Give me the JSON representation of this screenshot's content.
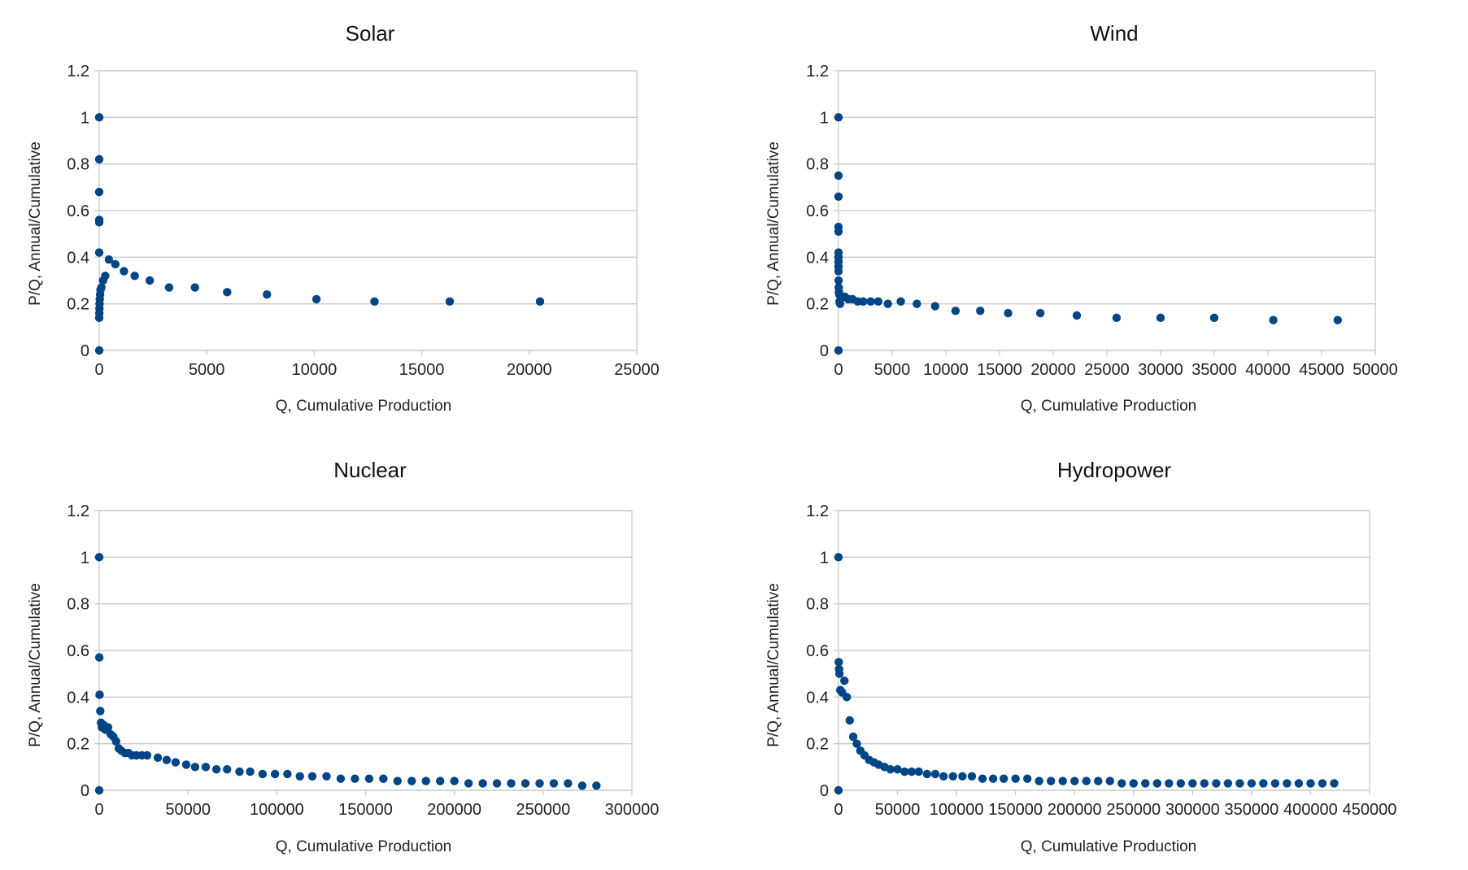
{
  "colors": {
    "marker": "#004586",
    "grid": "#c8c8c8",
    "text": "#222222"
  },
  "chart_data": [
    {
      "type": "scatter",
      "title": "Solar",
      "xlabel": "Q, Cumulative Production",
      "ylabel": "P/Q, Annual/Cumulative",
      "xlim": [
        0,
        25000
      ],
      "ylim": [
        0,
        1.2
      ],
      "xticks": [
        0,
        5000,
        10000,
        15000,
        20000,
        25000
      ],
      "yticks": [
        0,
        0.2,
        0.4,
        0.6,
        0.8,
        1,
        1.2
      ],
      "xtick_labels": [
        "0",
        "5000",
        "10000",
        "15000",
        "20000",
        "25000"
      ],
      "ytick_labels": [
        "0",
        "0.2",
        "0.4",
        "0.6",
        "0.8",
        "1",
        "1.2"
      ],
      "grid": true,
      "points": [
        {
          "x": 0,
          "y": 0
        },
        {
          "x": 0,
          "y": 1
        },
        {
          "x": 0,
          "y": 0.82
        },
        {
          "x": 0,
          "y": 0.68
        },
        {
          "x": 0,
          "y": 0.56
        },
        {
          "x": 0,
          "y": 0.55
        },
        {
          "x": 0,
          "y": 0.42
        },
        {
          "x": 0,
          "y": 0.14
        },
        {
          "x": 5,
          "y": 0.16
        },
        {
          "x": 10,
          "y": 0.18
        },
        {
          "x": 15,
          "y": 0.2
        },
        {
          "x": 25,
          "y": 0.22
        },
        {
          "x": 40,
          "y": 0.24
        },
        {
          "x": 60,
          "y": 0.26
        },
        {
          "x": 100,
          "y": 0.27
        },
        {
          "x": 180,
          "y": 0.3
        },
        {
          "x": 280,
          "y": 0.32
        },
        {
          "x": 450,
          "y": 0.39
        },
        {
          "x": 750,
          "y": 0.37
        },
        {
          "x": 1150,
          "y": 0.34
        },
        {
          "x": 1650,
          "y": 0.32
        },
        {
          "x": 2350,
          "y": 0.3
        },
        {
          "x": 3250,
          "y": 0.27
        },
        {
          "x": 4450,
          "y": 0.27
        },
        {
          "x": 5950,
          "y": 0.25
        },
        {
          "x": 7800,
          "y": 0.24
        },
        {
          "x": 10100,
          "y": 0.22
        },
        {
          "x": 12800,
          "y": 0.21
        },
        {
          "x": 16300,
          "y": 0.21
        },
        {
          "x": 20500,
          "y": 0.21
        }
      ]
    },
    {
      "type": "scatter",
      "title": "Wind",
      "xlabel": "Q, Cumulative Production",
      "ylabel": "P/Q, Annual/Cumulative",
      "xlim": [
        0,
        50000
      ],
      "ylim": [
        0,
        1.2
      ],
      "xticks": [
        0,
        5000,
        10000,
        15000,
        20000,
        25000,
        30000,
        35000,
        40000,
        45000,
        50000
      ],
      "yticks": [
        0,
        0.2,
        0.4,
        0.6,
        0.8,
        1,
        1.2
      ],
      "xtick_labels": [
        "0",
        "5000",
        "10000",
        "15000",
        "20000",
        "25000",
        "30000",
        "35000",
        "40000",
        "45000",
        "50000"
      ],
      "ytick_labels": [
        "0",
        "0.2",
        "0.4",
        "0.6",
        "0.8",
        "1",
        "1.2"
      ],
      "grid": true,
      "points": [
        {
          "x": 0,
          "y": 0
        },
        {
          "x": 0,
          "y": 1
        },
        {
          "x": 0,
          "y": 0.75
        },
        {
          "x": 0,
          "y": 0.66
        },
        {
          "x": 0,
          "y": 0.53
        },
        {
          "x": 0,
          "y": 0.51
        },
        {
          "x": 0,
          "y": 0.42
        },
        {
          "x": 0,
          "y": 0.4
        },
        {
          "x": 0,
          "y": 0.38
        },
        {
          "x": 0,
          "y": 0.36
        },
        {
          "x": 0,
          "y": 0.34
        },
        {
          "x": 10,
          "y": 0.3
        },
        {
          "x": 20,
          "y": 0.27
        },
        {
          "x": 40,
          "y": 0.25
        },
        {
          "x": 70,
          "y": 0.24
        },
        {
          "x": 100,
          "y": 0.21
        },
        {
          "x": 150,
          "y": 0.2
        },
        {
          "x": 250,
          "y": 0.23
        },
        {
          "x": 400,
          "y": 0.23
        },
        {
          "x": 600,
          "y": 0.23
        },
        {
          "x": 900,
          "y": 0.22
        },
        {
          "x": 1300,
          "y": 0.22
        },
        {
          "x": 1800,
          "y": 0.21
        },
        {
          "x": 2300,
          "y": 0.21
        },
        {
          "x": 3000,
          "y": 0.21
        },
        {
          "x": 3700,
          "y": 0.21
        },
        {
          "x": 4600,
          "y": 0.2
        },
        {
          "x": 5800,
          "y": 0.21
        },
        {
          "x": 7300,
          "y": 0.2
        },
        {
          "x": 9000,
          "y": 0.19
        },
        {
          "x": 10900,
          "y": 0.17
        },
        {
          "x": 13200,
          "y": 0.17
        },
        {
          "x": 15800,
          "y": 0.16
        },
        {
          "x": 18800,
          "y": 0.16
        },
        {
          "x": 22200,
          "y": 0.15
        },
        {
          "x": 25900,
          "y": 0.14
        },
        {
          "x": 30000,
          "y": 0.14
        },
        {
          "x": 35000,
          "y": 0.14
        },
        {
          "x": 40500,
          "y": 0.13
        },
        {
          "x": 46500,
          "y": 0.13
        }
      ]
    },
    {
      "type": "scatter",
      "title": "Nuclear",
      "xlabel": "Q, Cumulative Production",
      "ylabel": "P/Q, Annual/Cumulative",
      "xlim": [
        0,
        300000
      ],
      "ylim": [
        0,
        1.2
      ],
      "xticks": [
        0,
        50000,
        100000,
        150000,
        200000,
        250000,
        300000
      ],
      "yticks": [
        0,
        0.2,
        0.4,
        0.6,
        0.8,
        1,
        1.2
      ],
      "xtick_labels": [
        "0",
        "50000",
        "100000",
        "150000",
        "200000",
        "250000",
        "300000"
      ],
      "ytick_labels": [
        "0",
        "0.2",
        "0.4",
        "0.6",
        "0.8",
        "1",
        "1.2"
      ],
      "grid": true,
      "points": [
        {
          "x": 0,
          "y": 0
        },
        {
          "x": 0,
          "y": 1
        },
        {
          "x": 50,
          "y": 0.57
        },
        {
          "x": 200,
          "y": 0.41
        },
        {
          "x": 600,
          "y": 0.34
        },
        {
          "x": 1000,
          "y": 0.29
        },
        {
          "x": 1500,
          "y": 0.27
        },
        {
          "x": 2500,
          "y": 0.28
        },
        {
          "x": 3500,
          "y": 0.26
        },
        {
          "x": 5000,
          "y": 0.27
        },
        {
          "x": 6500,
          "y": 0.24
        },
        {
          "x": 8000,
          "y": 0.23
        },
        {
          "x": 9500,
          "y": 0.21
        },
        {
          "x": 11000,
          "y": 0.18
        },
        {
          "x": 12500,
          "y": 0.17
        },
        {
          "x": 14500,
          "y": 0.16
        },
        {
          "x": 16500,
          "y": 0.16
        },
        {
          "x": 18500,
          "y": 0.15
        },
        {
          "x": 21000,
          "y": 0.15
        },
        {
          "x": 24000,
          "y": 0.15
        },
        {
          "x": 27000,
          "y": 0.15
        },
        {
          "x": 33000,
          "y": 0.14
        },
        {
          "x": 38000,
          "y": 0.13
        },
        {
          "x": 43000,
          "y": 0.12
        },
        {
          "x": 49000,
          "y": 0.11
        },
        {
          "x": 54000,
          "y": 0.1
        },
        {
          "x": 60000,
          "y": 0.1
        },
        {
          "x": 66000,
          "y": 0.09
        },
        {
          "x": 72000,
          "y": 0.09
        },
        {
          "x": 79000,
          "y": 0.08
        },
        {
          "x": 85000,
          "y": 0.08
        },
        {
          "x": 92000,
          "y": 0.07
        },
        {
          "x": 99000,
          "y": 0.07
        },
        {
          "x": 106000,
          "y": 0.07
        },
        {
          "x": 113000,
          "y": 0.06
        },
        {
          "x": 120000,
          "y": 0.06
        },
        {
          "x": 128000,
          "y": 0.06
        },
        {
          "x": 136000,
          "y": 0.05
        },
        {
          "x": 144000,
          "y": 0.05
        },
        {
          "x": 152000,
          "y": 0.05
        },
        {
          "x": 160000,
          "y": 0.05
        },
        {
          "x": 168000,
          "y": 0.04
        },
        {
          "x": 176000,
          "y": 0.04
        },
        {
          "x": 184000,
          "y": 0.04
        },
        {
          "x": 192000,
          "y": 0.04
        },
        {
          "x": 200000,
          "y": 0.04
        },
        {
          "x": 208000,
          "y": 0.03
        },
        {
          "x": 216000,
          "y": 0.03
        },
        {
          "x": 224000,
          "y": 0.03
        },
        {
          "x": 232000,
          "y": 0.03
        },
        {
          "x": 240000,
          "y": 0.03
        },
        {
          "x": 248000,
          "y": 0.03
        },
        {
          "x": 256000,
          "y": 0.03
        },
        {
          "x": 264000,
          "y": 0.03
        },
        {
          "x": 272000,
          "y": 0.02
        },
        {
          "x": 280000,
          "y": 0.02
        }
      ]
    },
    {
      "type": "scatter",
      "title": "Hydropower",
      "xlabel": "Q, Cumulative Production",
      "ylabel": "P/Q, Annual/Cumulative",
      "xlim": [
        0,
        450000
      ],
      "ylim": [
        0,
        1.2
      ],
      "xticks": [
        0,
        50000,
        100000,
        150000,
        200000,
        250000,
        300000,
        350000,
        400000,
        450000
      ],
      "yticks": [
        0,
        0.2,
        0.4,
        0.6,
        0.8,
        1,
        1.2
      ],
      "xtick_labels": [
        "0",
        "50000",
        "100000",
        "150000",
        "200000",
        "250000",
        "300000",
        "350000",
        "400000",
        "450000"
      ],
      "ytick_labels": [
        "0",
        "0.2",
        "0.4",
        "0.6",
        "0.8",
        "1",
        "1.2"
      ],
      "grid": true,
      "points": [
        {
          "x": 0,
          "y": 0
        },
        {
          "x": 0,
          "y": 1
        },
        {
          "x": 200,
          "y": 0.55
        },
        {
          "x": 500,
          "y": 0.52
        },
        {
          "x": 800,
          "y": 0.5
        },
        {
          "x": 1500,
          "y": 0.43
        },
        {
          "x": 3000,
          "y": 0.42
        },
        {
          "x": 5000,
          "y": 0.47
        },
        {
          "x": 7000,
          "y": 0.4
        },
        {
          "x": 9500,
          "y": 0.3
        },
        {
          "x": 12500,
          "y": 0.23
        },
        {
          "x": 15500,
          "y": 0.2
        },
        {
          "x": 18500,
          "y": 0.17
        },
        {
          "x": 22000,
          "y": 0.15
        },
        {
          "x": 26000,
          "y": 0.13
        },
        {
          "x": 30000,
          "y": 0.12
        },
        {
          "x": 34000,
          "y": 0.11
        },
        {
          "x": 39000,
          "y": 0.1
        },
        {
          "x": 44000,
          "y": 0.09
        },
        {
          "x": 50000,
          "y": 0.09
        },
        {
          "x": 56000,
          "y": 0.08
        },
        {
          "x": 62000,
          "y": 0.08
        },
        {
          "x": 68000,
          "y": 0.08
        },
        {
          "x": 75000,
          "y": 0.07
        },
        {
          "x": 82000,
          "y": 0.07
        },
        {
          "x": 89000,
          "y": 0.06
        },
        {
          "x": 97000,
          "y": 0.06
        },
        {
          "x": 105000,
          "y": 0.06
        },
        {
          "x": 113000,
          "y": 0.06
        },
        {
          "x": 122000,
          "y": 0.05
        },
        {
          "x": 131000,
          "y": 0.05
        },
        {
          "x": 140000,
          "y": 0.05
        },
        {
          "x": 150000,
          "y": 0.05
        },
        {
          "x": 160000,
          "y": 0.05
        },
        {
          "x": 170000,
          "y": 0.04
        },
        {
          "x": 180000,
          "y": 0.04
        },
        {
          "x": 190000,
          "y": 0.04
        },
        {
          "x": 200000,
          "y": 0.04
        },
        {
          "x": 210000,
          "y": 0.04
        },
        {
          "x": 220000,
          "y": 0.04
        },
        {
          "x": 230000,
          "y": 0.04
        },
        {
          "x": 240000,
          "y": 0.03
        },
        {
          "x": 250000,
          "y": 0.03
        },
        {
          "x": 260000,
          "y": 0.03
        },
        {
          "x": 270000,
          "y": 0.03
        },
        {
          "x": 280000,
          "y": 0.03
        },
        {
          "x": 290000,
          "y": 0.03
        },
        {
          "x": 300000,
          "y": 0.03
        },
        {
          "x": 310000,
          "y": 0.03
        },
        {
          "x": 320000,
          "y": 0.03
        },
        {
          "x": 330000,
          "y": 0.03
        },
        {
          "x": 340000,
          "y": 0.03
        },
        {
          "x": 350000,
          "y": 0.03
        },
        {
          "x": 360000,
          "y": 0.03
        },
        {
          "x": 370000,
          "y": 0.03
        },
        {
          "x": 380000,
          "y": 0.03
        },
        {
          "x": 390000,
          "y": 0.03
        },
        {
          "x": 400000,
          "y": 0.03
        },
        {
          "x": 410000,
          "y": 0.03
        },
        {
          "x": 420000,
          "y": 0.03
        }
      ]
    }
  ]
}
